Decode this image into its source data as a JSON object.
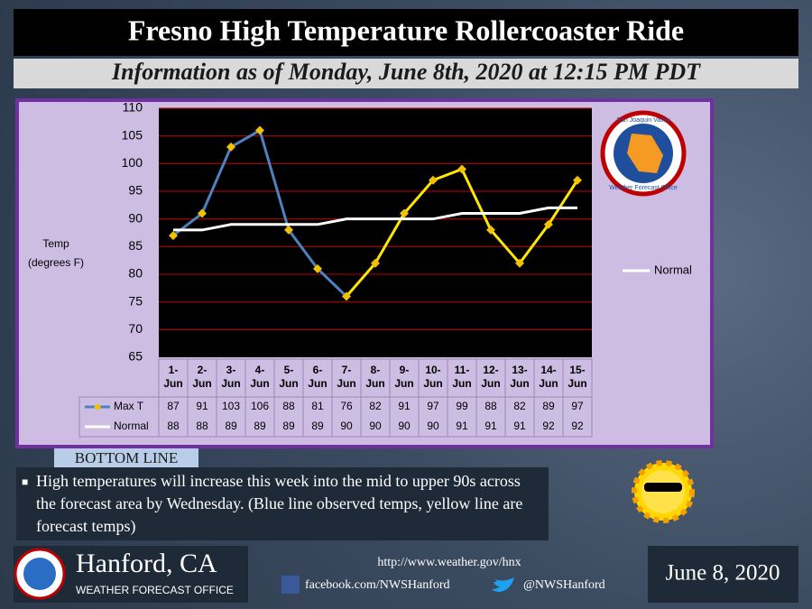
{
  "header": {
    "title": "Fresno High Temperature Rollercoaster Ride",
    "subtitle": "Information as of  Monday, June 8th, 2020 at 12:15 PM PDT"
  },
  "chart_data": {
    "type": "line",
    "y_label": [
      "Temp",
      "(degrees F)"
    ],
    "categories": [
      "1-Jun",
      "2-Jun",
      "3-Jun",
      "4-Jun",
      "5-Jun",
      "6-Jun",
      "7-Jun",
      "8-Jun",
      "9-Jun",
      "10-Jun",
      "11-Jun",
      "12-Jun",
      "13-Jun",
      "14-Jun",
      "15-Jun"
    ],
    "series": [
      {
        "name": "Max T",
        "color": "#4f81bd",
        "marker_color": "#f2c200",
        "segment_colors": [
          "#4f81bd",
          "#4f81bd",
          "#4f81bd",
          "#4f81bd",
          "#4f81bd",
          "#4f81bd",
          "#ffe600",
          "#ffe600",
          "#ffe600",
          "#ffe600",
          "#ffe600",
          "#ffe600",
          "#ffe600",
          "#ffe600"
        ],
        "values": [
          87,
          91,
          103,
          106,
          88,
          81,
          76,
          82,
          91,
          97,
          99,
          88,
          82,
          89,
          97
        ]
      },
      {
        "name": "Normal",
        "color": "#ffffff",
        "values": [
          88,
          88,
          89,
          89,
          89,
          89,
          90,
          90,
          90,
          90,
          91,
          91,
          91,
          92,
          92
        ]
      }
    ],
    "ylim": [
      65,
      110
    ],
    "yticks": [
      65,
      70,
      75,
      80,
      85,
      90,
      95,
      100,
      105,
      110
    ],
    "grid": true,
    "grid_color": "#c00000"
  },
  "logo": {
    "top": "San Joaquin Valley",
    "bottom": "Weather Forecast Office"
  },
  "bottom_line": {
    "label": "BOTTOM LINE",
    "text": "High temperatures will increase this week into the mid to upper 90s across the forecast area by Wednesday. (Blue line observed temps, yellow line are forecast temps)"
  },
  "footer": {
    "office": "Hanford, CA",
    "office_sub": "WEATHER FORECAST OFFICE",
    "url": "http://www.weather.gov/hnx",
    "facebook": "facebook.com/NWSHanford",
    "twitter": "@NWSHanford",
    "date": "June 8, 2020"
  }
}
